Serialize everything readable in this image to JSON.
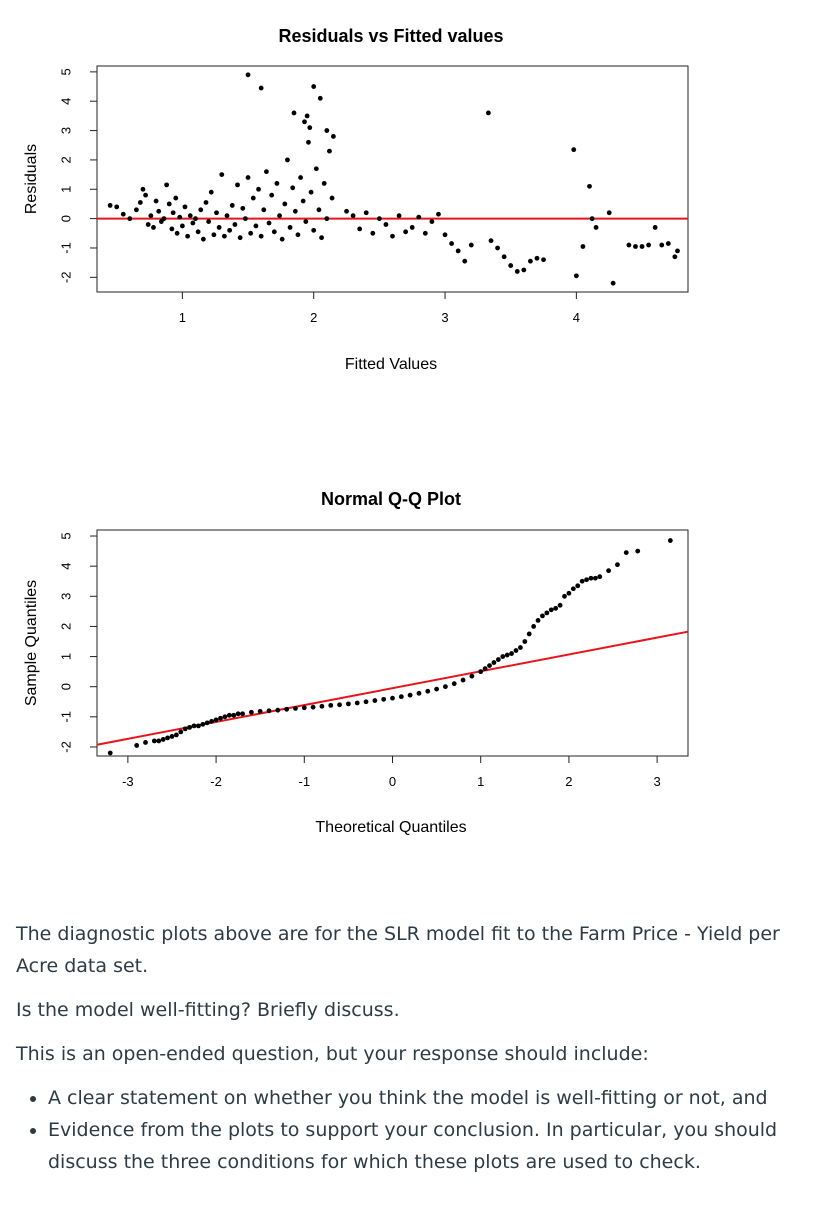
{
  "chart_data": [
    {
      "type": "scatter",
      "title": "Residuals vs Fitted values",
      "xlabel": "Fitted Values",
      "ylabel": "Residuals",
      "x_ticks": [
        "1",
        "2",
        "3",
        "4"
      ],
      "y_ticks": [
        "-2",
        "-1",
        "0",
        "1",
        "2",
        "3",
        "4",
        "5"
      ],
      "xlim": [
        0.35,
        4.85
      ],
      "ylim": [
        -2.5,
        5.2
      ],
      "reference_line": {
        "y": 0,
        "color": "#e8141b"
      },
      "grid": false,
      "points": [
        [
          0.45,
          0.45
        ],
        [
          0.5,
          0.4
        ],
        [
          0.55,
          0.15
        ],
        [
          0.6,
          0.0
        ],
        [
          0.65,
          0.3
        ],
        [
          0.68,
          0.55
        ],
        [
          0.7,
          1.0
        ],
        [
          0.72,
          0.8
        ],
        [
          0.74,
          -0.2
        ],
        [
          0.76,
          0.1
        ],
        [
          0.78,
          -0.3
        ],
        [
          0.8,
          0.6
        ],
        [
          0.82,
          0.25
        ],
        [
          0.84,
          -0.1
        ],
        [
          0.86,
          0.0
        ],
        [
          0.88,
          1.15
        ],
        [
          0.9,
          0.5
        ],
        [
          0.92,
          -0.35
        ],
        [
          0.93,
          0.2
        ],
        [
          0.95,
          0.7
        ],
        [
          0.96,
          -0.5
        ],
        [
          0.98,
          0.05
        ],
        [
          1.0,
          -0.25
        ],
        [
          1.02,
          0.4
        ],
        [
          1.04,
          -0.6
        ],
        [
          1.06,
          0.1
        ],
        [
          1.08,
          -0.15
        ],
        [
          1.1,
          0.0
        ],
        [
          1.12,
          -0.45
        ],
        [
          1.14,
          0.3
        ],
        [
          1.16,
          -0.7
        ],
        [
          1.18,
          0.55
        ],
        [
          1.2,
          -0.1
        ],
        [
          1.22,
          0.9
        ],
        [
          1.24,
          -0.55
        ],
        [
          1.26,
          0.2
        ],
        [
          1.28,
          -0.3
        ],
        [
          1.3,
          1.5
        ],
        [
          1.32,
          -0.6
        ],
        [
          1.34,
          0.1
        ],
        [
          1.36,
          -0.4
        ],
        [
          1.38,
          0.45
        ],
        [
          1.4,
          -0.2
        ],
        [
          1.42,
          1.15
        ],
        [
          1.44,
          -0.65
        ],
        [
          1.46,
          0.35
        ],
        [
          1.48,
          0.0
        ],
        [
          1.5,
          1.4
        ],
        [
          1.52,
          -0.5
        ],
        [
          1.54,
          0.7
        ],
        [
          1.56,
          -0.25
        ],
        [
          1.58,
          1.0
        ],
        [
          1.6,
          -0.6
        ],
        [
          1.62,
          0.3
        ],
        [
          1.64,
          1.6
        ],
        [
          1.66,
          -0.15
        ],
        [
          1.68,
          0.8
        ],
        [
          1.7,
          -0.45
        ],
        [
          1.72,
          1.2
        ],
        [
          1.74,
          0.1
        ],
        [
          1.76,
          -0.7
        ],
        [
          1.78,
          0.5
        ],
        [
          1.8,
          2.0
        ],
        [
          1.82,
          -0.3
        ],
        [
          1.84,
          1.05
        ],
        [
          1.86,
          0.25
        ],
        [
          1.88,
          -0.55
        ],
        [
          1.9,
          1.4
        ],
        [
          1.92,
          0.6
        ],
        [
          1.94,
          -0.1
        ],
        [
          1.96,
          2.6
        ],
        [
          1.98,
          0.9
        ],
        [
          2.0,
          -0.4
        ],
        [
          2.02,
          1.7
        ],
        [
          2.04,
          0.3
        ],
        [
          2.06,
          -0.65
        ],
        [
          2.08,
          1.2
        ],
        [
          2.1,
          0.0
        ],
        [
          2.12,
          2.3
        ],
        [
          2.14,
          0.7
        ],
        [
          1.5,
          4.9
        ],
        [
          1.6,
          4.45
        ],
        [
          1.85,
          3.6
        ],
        [
          1.95,
          3.5
        ],
        [
          1.93,
          3.3
        ],
        [
          2.0,
          4.5
        ],
        [
          2.05,
          4.1
        ],
        [
          1.97,
          3.1
        ],
        [
          2.15,
          2.8
        ],
        [
          2.1,
          3.0
        ],
        [
          2.25,
          0.25
        ],
        [
          2.3,
          0.1
        ],
        [
          2.35,
          -0.35
        ],
        [
          2.4,
          0.2
        ],
        [
          2.45,
          -0.5
        ],
        [
          2.5,
          0.0
        ],
        [
          2.55,
          -0.2
        ],
        [
          2.6,
          -0.6
        ],
        [
          2.65,
          0.1
        ],
        [
          2.7,
          -0.45
        ],
        [
          2.75,
          -0.3
        ],
        [
          2.8,
          0.05
        ],
        [
          2.85,
          -0.5
        ],
        [
          2.9,
          -0.1
        ],
        [
          2.95,
          0.15
        ],
        [
          3.0,
          -0.55
        ],
        [
          3.05,
          -0.85
        ],
        [
          3.1,
          -1.1
        ],
        [
          3.15,
          -1.45
        ],
        [
          3.2,
          -0.9
        ],
        [
          3.33,
          3.6
        ],
        [
          3.35,
          -0.75
        ],
        [
          3.4,
          -1.0
        ],
        [
          3.45,
          -1.3
        ],
        [
          3.5,
          -1.6
        ],
        [
          3.55,
          -1.8
        ],
        [
          3.6,
          -1.75
        ],
        [
          3.65,
          -1.45
        ],
        [
          3.7,
          -1.35
        ],
        [
          3.75,
          -1.4
        ],
        [
          3.98,
          2.35
        ],
        [
          4.0,
          -1.95
        ],
        [
          4.05,
          -0.95
        ],
        [
          4.1,
          1.1
        ],
        [
          4.12,
          0.0
        ],
        [
          4.15,
          -0.3
        ],
        [
          4.25,
          0.2
        ],
        [
          4.28,
          -2.2
        ],
        [
          4.4,
          -0.9
        ],
        [
          4.45,
          -0.95
        ],
        [
          4.5,
          -0.95
        ],
        [
          4.55,
          -0.9
        ],
        [
          4.6,
          -0.3
        ],
        [
          4.65,
          -0.9
        ],
        [
          4.7,
          -0.85
        ],
        [
          4.75,
          -1.3
        ],
        [
          4.77,
          -1.1
        ]
      ]
    },
    {
      "type": "scatter",
      "title": "Normal Q-Q Plot",
      "xlabel": "Theoretical Quantiles",
      "ylabel": "Sample Quantiles",
      "x_ticks": [
        "-3",
        "-2",
        "-1",
        "0",
        "1",
        "2",
        "3"
      ],
      "y_ticks": [
        "-2",
        "-1",
        "0",
        "1",
        "2",
        "3",
        "4",
        "5"
      ],
      "xlim": [
        -3.35,
        3.35
      ],
      "ylim": [
        -2.3,
        5.2
      ],
      "reference_line": {
        "intercept": -0.05,
        "slope": 0.56,
        "color": "#e8141b"
      },
      "grid": false,
      "points": [
        [
          -3.2,
          -2.2
        ],
        [
          -2.9,
          -1.95
        ],
        [
          -2.8,
          -1.85
        ],
        [
          -2.7,
          -1.8
        ],
        [
          -2.65,
          -1.8
        ],
        [
          -2.6,
          -1.75
        ],
        [
          -2.55,
          -1.7
        ],
        [
          -2.5,
          -1.65
        ],
        [
          -2.45,
          -1.6
        ],
        [
          -2.4,
          -1.5
        ],
        [
          -2.35,
          -1.4
        ],
        [
          -2.3,
          -1.35
        ],
        [
          -2.25,
          -1.3
        ],
        [
          -2.2,
          -1.3
        ],
        [
          -2.15,
          -1.25
        ],
        [
          -2.1,
          -1.2
        ],
        [
          -2.05,
          -1.15
        ],
        [
          -2.0,
          -1.1
        ],
        [
          -1.95,
          -1.05
        ],
        [
          -1.9,
          -1.0
        ],
        [
          -1.85,
          -0.95
        ],
        [
          -1.8,
          -0.95
        ],
        [
          -1.75,
          -0.9
        ],
        [
          -1.7,
          -0.9
        ],
        [
          -1.6,
          -0.85
        ],
        [
          -1.5,
          -0.82
        ],
        [
          -1.4,
          -0.8
        ],
        [
          -1.3,
          -0.78
        ],
        [
          -1.2,
          -0.75
        ],
        [
          -1.1,
          -0.72
        ],
        [
          -1.0,
          -0.7
        ],
        [
          -0.9,
          -0.68
        ],
        [
          -0.8,
          -0.65
        ],
        [
          -0.7,
          -0.62
        ],
        [
          -0.6,
          -0.6
        ],
        [
          -0.5,
          -0.57
        ],
        [
          -0.4,
          -0.54
        ],
        [
          -0.3,
          -0.5
        ],
        [
          -0.2,
          -0.46
        ],
        [
          -0.1,
          -0.42
        ],
        [
          0.0,
          -0.38
        ],
        [
          0.1,
          -0.33
        ],
        [
          0.2,
          -0.28
        ],
        [
          0.3,
          -0.22
        ],
        [
          0.4,
          -0.15
        ],
        [
          0.5,
          -0.08
        ],
        [
          0.6,
          0.0
        ],
        [
          0.7,
          0.1
        ],
        [
          0.8,
          0.22
        ],
        [
          0.9,
          0.35
        ],
        [
          1.0,
          0.5
        ],
        [
          1.05,
          0.6
        ],
        [
          1.1,
          0.7
        ],
        [
          1.15,
          0.8
        ],
        [
          1.2,
          0.9
        ],
        [
          1.25,
          1.0
        ],
        [
          1.3,
          1.05
        ],
        [
          1.35,
          1.1
        ],
        [
          1.4,
          1.2
        ],
        [
          1.45,
          1.3
        ],
        [
          1.5,
          1.5
        ],
        [
          1.55,
          1.75
        ],
        [
          1.6,
          2.0
        ],
        [
          1.65,
          2.2
        ],
        [
          1.7,
          2.35
        ],
        [
          1.75,
          2.45
        ],
        [
          1.8,
          2.55
        ],
        [
          1.85,
          2.6
        ],
        [
          1.9,
          2.7
        ],
        [
          1.95,
          3.0
        ],
        [
          2.0,
          3.1
        ],
        [
          2.05,
          3.25
        ],
        [
          2.1,
          3.35
        ],
        [
          2.15,
          3.5
        ],
        [
          2.2,
          3.55
        ],
        [
          2.25,
          3.6
        ],
        [
          2.3,
          3.6
        ],
        [
          2.35,
          3.65
        ],
        [
          2.45,
          3.85
        ],
        [
          2.55,
          4.05
        ],
        [
          2.65,
          4.45
        ],
        [
          2.78,
          4.5
        ],
        [
          3.15,
          4.85
        ]
      ]
    }
  ],
  "question": {
    "intro": "The diagnostic plots above are for the SLR model fit to the Farm Price - Yield per Acre data set.",
    "prompt": "Is the model well-fitting? Briefly discuss.",
    "instruction": "This is an open-ended question, but your response should include:",
    "bullets": [
      "A clear statement on whether you think the model is well-fitting or not, and",
      "Evidence from the plots to support your conclusion. In particular, you should discuss the three conditions for which these plots are used to check."
    ]
  }
}
